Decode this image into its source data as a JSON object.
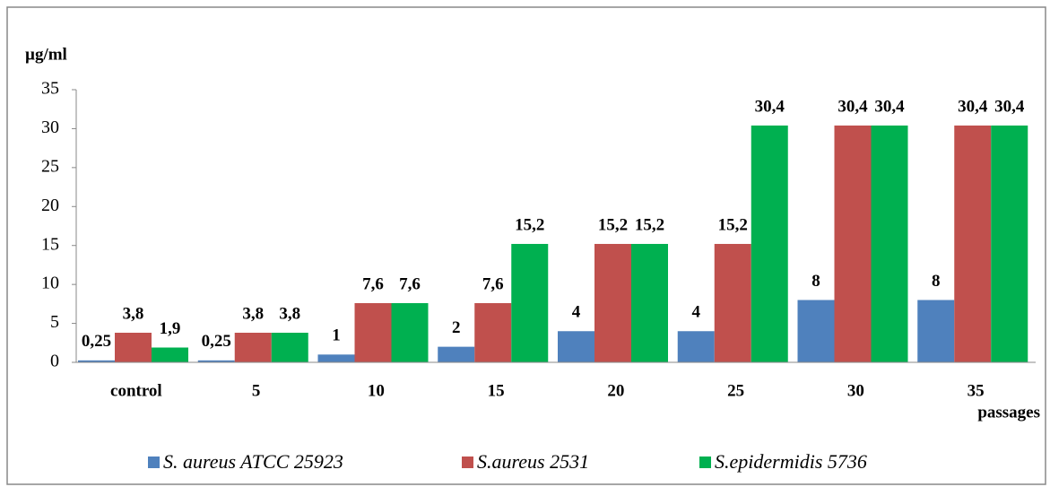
{
  "chart_data": {
    "type": "bar",
    "y_label": "µg/ml",
    "x_label": "passages",
    "categories": [
      "control",
      "5",
      "10",
      "15",
      "20",
      "25",
      "30",
      "35"
    ],
    "series": [
      {
        "name": "S. aureus ATCC 25923",
        "color": "#4f81bd",
        "values": [
          0.25,
          0.25,
          1,
          2,
          4,
          4,
          8,
          8
        ],
        "value_labels": [
          "0,25",
          "0,25",
          "1",
          "2",
          "4",
          "4",
          "8",
          "8"
        ]
      },
      {
        "name": "S.aureus 2531",
        "color": "#c0504d",
        "values": [
          3.8,
          3.8,
          7.6,
          7.6,
          15.2,
          15.2,
          30.4,
          30.4
        ],
        "value_labels": [
          "3,8",
          "3,8",
          "7,6",
          "7,6",
          "15,2",
          "15,2",
          "30,4",
          "30,4"
        ]
      },
      {
        "name": "S.epidermidis 5736",
        "color": "#00b050",
        "values": [
          1.9,
          3.8,
          7.6,
          15.2,
          15.2,
          30.4,
          30.4,
          30.4
        ],
        "value_labels": [
          "1,9",
          "3,8",
          "7,6",
          "15,2",
          "15,2",
          "30,4",
          "30,4",
          "30,4"
        ]
      }
    ],
    "ylim": [
      0,
      35
    ],
    "yticks": [
      0,
      5,
      10,
      15,
      20,
      25,
      30,
      35
    ],
    "grid": false,
    "legend": "bottom"
  }
}
